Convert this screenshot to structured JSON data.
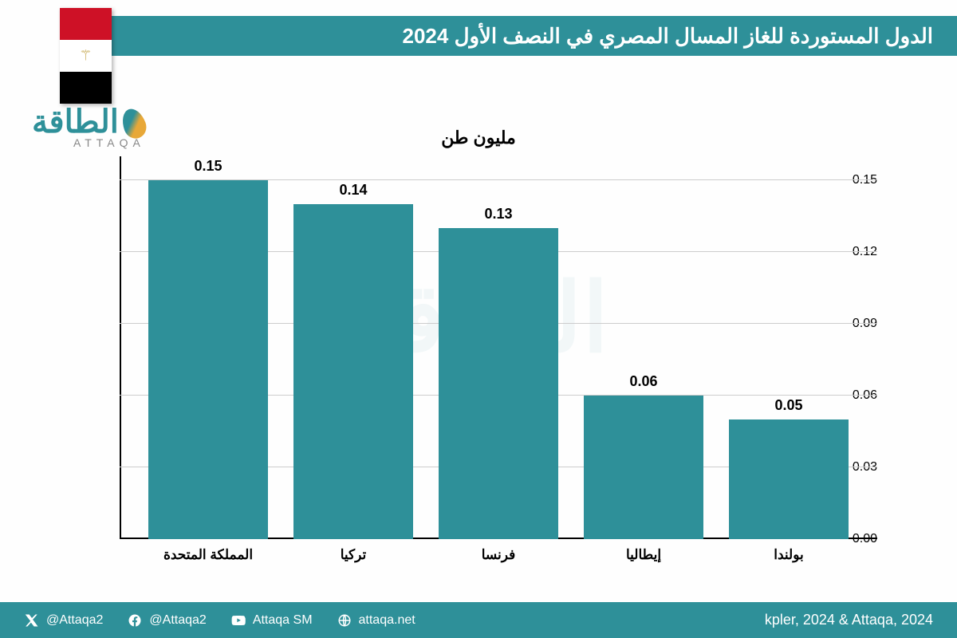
{
  "header": {
    "title": "الدول المستوردة للغاز المسال المصري في النصف الأول 2024",
    "flag_colors": [
      "#ce1126",
      "#ffffff",
      "#000000"
    ]
  },
  "logo": {
    "main": "الطاقة",
    "sub": "ATTAQA",
    "color": "#2e9099"
  },
  "watermark": "الطاقة",
  "chart": {
    "type": "bar",
    "unit_label": "مليون طن",
    "categories": [
      "المملكة المتحدة",
      "تركيا",
      "فرنسا",
      "إيطاليا",
      "بولندا"
    ],
    "values": [
      0.15,
      0.14,
      0.13,
      0.06,
      0.05
    ],
    "value_labels": [
      "0.15",
      "0.14",
      "0.13",
      "0.06",
      "0.05"
    ],
    "bar_color": "#2e9099",
    "ylim": [
      0,
      0.16
    ],
    "yticks": [
      0.0,
      0.03,
      0.06,
      0.09,
      0.12,
      0.15
    ],
    "ytick_labels": [
      "0.00",
      "0.03",
      "0.06",
      "0.09",
      "0.12",
      "0.15"
    ],
    "background_color": "#ffffff",
    "grid_color": "#cccccc",
    "axis_color": "#000000",
    "label_fontsize": 17,
    "value_fontsize": 18,
    "tick_fontsize": 16
  },
  "footer": {
    "source": "kpler, 2024 & Attaqa, 2024",
    "social": [
      {
        "icon": "x",
        "handle": "@Attaqa2"
      },
      {
        "icon": "facebook",
        "handle": "@Attaqa2"
      },
      {
        "icon": "youtube",
        "handle": "Attaqa SM"
      },
      {
        "icon": "web",
        "handle": "attaqa.net"
      }
    ]
  }
}
